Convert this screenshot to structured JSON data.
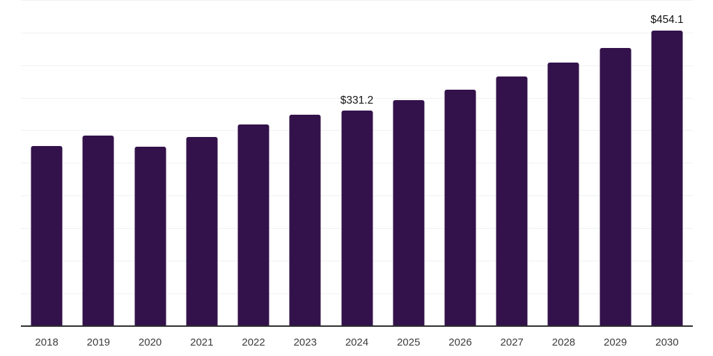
{
  "chart_data": {
    "type": "bar",
    "title": "",
    "xlabel": "",
    "ylabel": "",
    "categories": [
      "2018",
      "2019",
      "2020",
      "2021",
      "2022",
      "2023",
      "2024",
      "2025",
      "2026",
      "2027",
      "2028",
      "2029",
      "2030"
    ],
    "values": [
      277.5,
      293.4,
      275.6,
      291.0,
      310.2,
      325.4,
      331.2,
      347.1,
      363.8,
      383.4,
      404.7,
      427.5,
      454.1
    ],
    "data_labels": [
      "",
      "",
      "",
      "",
      "",
      "",
      "$331.2",
      "",
      "",
      "",
      "",
      "",
      "$454.1"
    ],
    "ylim": [
      0,
      500
    ],
    "grid_step": 50,
    "grid": "horizontal gridlines only, no y-axis tick labels",
    "legend": "none",
    "colors": {
      "bar": "#33124B",
      "grid": "#F1F0F3",
      "axis": "#2B2B2B",
      "tick_label": "#3C3C3C",
      "value_label": "#111111",
      "background": "#FFFFFF"
    }
  }
}
